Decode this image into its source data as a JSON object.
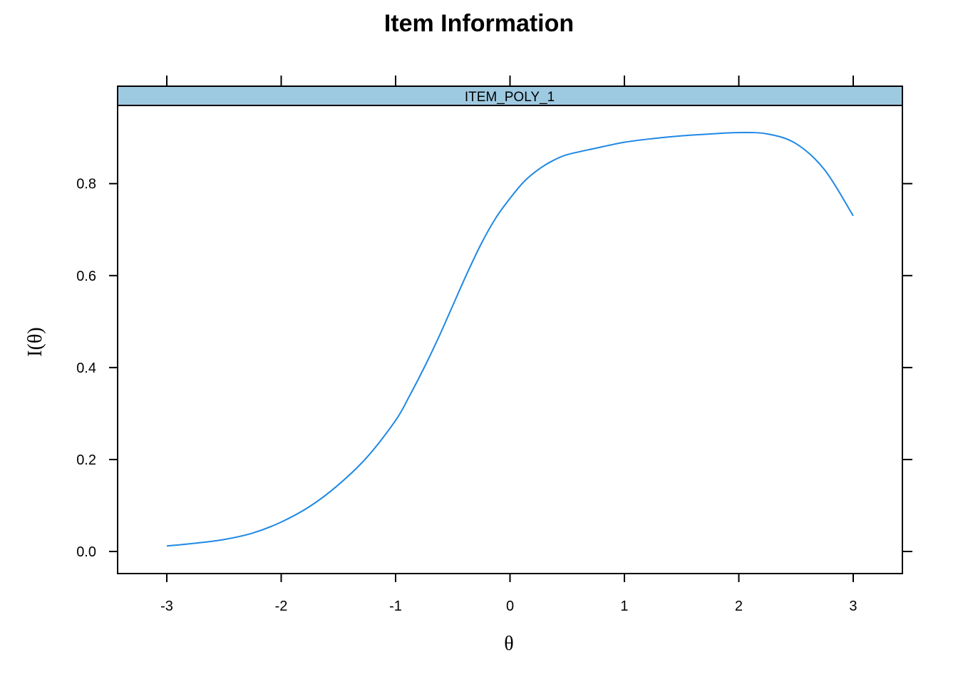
{
  "chart_data": {
    "type": "line",
    "title": "Item Information",
    "panel_label": "ITEM_POLY_1",
    "xlabel": "θ",
    "ylabel": "I(θ)",
    "xlim": [
      -3.43,
      3.43
    ],
    "ylim": [
      -0.048,
      0.97
    ],
    "x_ticks": [
      -3,
      -2,
      -1,
      0,
      1,
      2,
      3
    ],
    "x_tick_labels": [
      "-3",
      "-2",
      "-1",
      "0",
      "1",
      "2",
      "3"
    ],
    "y_ticks": [
      0.0,
      0.2,
      0.4,
      0.6,
      0.8
    ],
    "y_tick_labels": [
      "0.0",
      "0.2",
      "0.4",
      "0.6",
      "0.8"
    ],
    "grid": false,
    "series": [
      {
        "color": "#1f88e5",
        "x": [
          -3.0,
          -2.75,
          -2.5,
          -2.25,
          -2.0,
          -1.75,
          -1.5,
          -1.25,
          -1.0,
          -0.875,
          -0.75,
          -0.625,
          -0.5,
          -0.375,
          -0.25,
          -0.125,
          0.0,
          0.125,
          0.25,
          0.375,
          0.5,
          0.75,
          1.0,
          1.25,
          1.5,
          1.75,
          2.0,
          2.25,
          2.5,
          2.75,
          3.0
        ],
        "y": [
          0.012,
          0.018,
          0.026,
          0.04,
          0.064,
          0.098,
          0.145,
          0.205,
          0.285,
          0.34,
          0.4,
          0.465,
          0.535,
          0.605,
          0.67,
          0.725,
          0.768,
          0.805,
          0.831,
          0.85,
          0.863,
          0.877,
          0.89,
          0.898,
          0.904,
          0.908,
          0.911,
          0.908,
          0.887,
          0.83,
          0.73
        ]
      }
    ],
    "colors": {
      "strip": "#9ecae1",
      "line": "#1f88e5",
      "axis": "#000000"
    }
  }
}
